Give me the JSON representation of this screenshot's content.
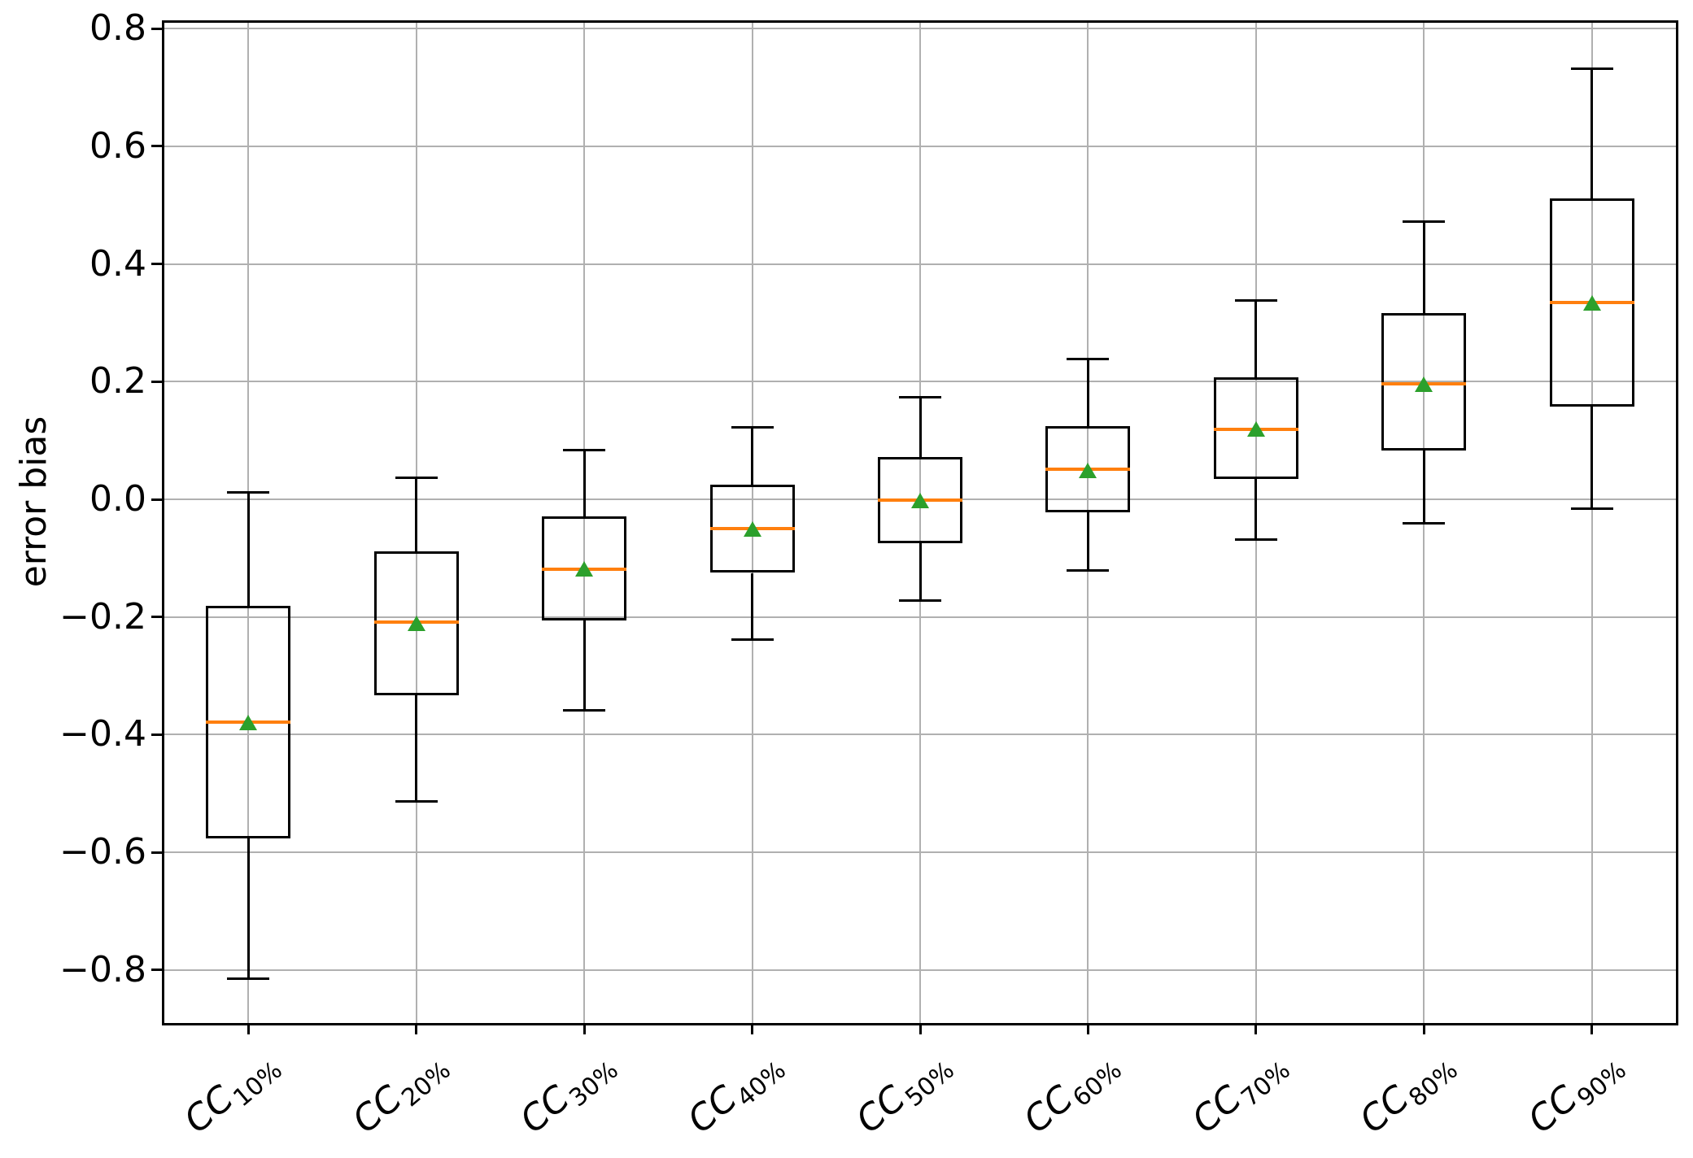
{
  "figure": {
    "background_color": "#ffffff"
  },
  "axes": {
    "ylabel": "error bias",
    "ytick_labels": [
      "0.8",
      "0.6",
      "0.4",
      "0.2",
      "0.0",
      "−0.2",
      "−0.4",
      "−0.6",
      "−0.8"
    ],
    "ytick_values": [
      0.8,
      0.6,
      0.4,
      0.2,
      0.0,
      -0.2,
      -0.4,
      -0.6,
      -0.8
    ],
    "grid_color": "#b0b0b0",
    "spine_color": "#000000"
  },
  "chart_data": {
    "type": "boxplot",
    "title": "",
    "xlabel": "",
    "ylabel": "error bias",
    "ylim": [
      -0.89,
      0.81
    ],
    "grid": true,
    "legend": false,
    "categories": [
      {
        "base": "CC",
        "sub": "10%"
      },
      {
        "base": "CC",
        "sub": "20%"
      },
      {
        "base": "CC",
        "sub": "30%"
      },
      {
        "base": "CC",
        "sub": "40%"
      },
      {
        "base": "CC",
        "sub": "50%"
      },
      {
        "base": "CC",
        "sub": "60%"
      },
      {
        "base": "CC",
        "sub": "70%"
      },
      {
        "base": "CC",
        "sub": "80%"
      },
      {
        "base": "CC",
        "sub": "90%"
      }
    ],
    "category_labels_plain": [
      "CC10%",
      "CC20%",
      "CC30%",
      "CC40%",
      "CC50%",
      "CC60%",
      "CC70%",
      "CC80%",
      "CC90%"
    ],
    "series": [
      {
        "label": "CC10%",
        "whislo": -0.814,
        "q1": -0.576,
        "med": -0.378,
        "mean": -0.378,
        "q3": -0.181,
        "whishi": 0.012
      },
      {
        "label": "CC20%",
        "whislo": -0.514,
        "q1": -0.333,
        "med": -0.209,
        "mean": -0.21,
        "q3": -0.088,
        "whishi": 0.037
      },
      {
        "label": "CC30%",
        "whislo": -0.359,
        "q1": -0.206,
        "med": -0.119,
        "mean": -0.118,
        "q3": -0.029,
        "whishi": 0.084
      },
      {
        "label": "CC40%",
        "whislo": -0.239,
        "q1": -0.125,
        "med": -0.05,
        "mean": -0.05,
        "q3": 0.025,
        "whishi": 0.123
      },
      {
        "label": "CC50%",
        "whislo": -0.172,
        "q1": -0.074,
        "med": -0.001,
        "mean": -0.001,
        "q3": 0.072,
        "whishi": 0.174
      },
      {
        "label": "CC60%",
        "whislo": -0.121,
        "q1": -0.022,
        "med": 0.051,
        "mean": 0.05,
        "q3": 0.124,
        "whishi": 0.239
      },
      {
        "label": "CC70%",
        "whislo": -0.068,
        "q1": 0.034,
        "med": 0.119,
        "mean": 0.12,
        "q3": 0.208,
        "whishi": 0.338
      },
      {
        "label": "CC80%",
        "whislo": -0.041,
        "q1": 0.083,
        "med": 0.197,
        "mean": 0.197,
        "q3": 0.316,
        "whishi": 0.472
      },
      {
        "label": "CC90%",
        "whislo": -0.016,
        "q1": 0.158,
        "med": 0.335,
        "mean": 0.335,
        "q3": 0.512,
        "whishi": 0.732
      }
    ],
    "colors": {
      "median_line": "#ff7f0e",
      "mean_marker": "#2ca02c",
      "box_edge": "#000000",
      "whisker": "#000000"
    }
  }
}
